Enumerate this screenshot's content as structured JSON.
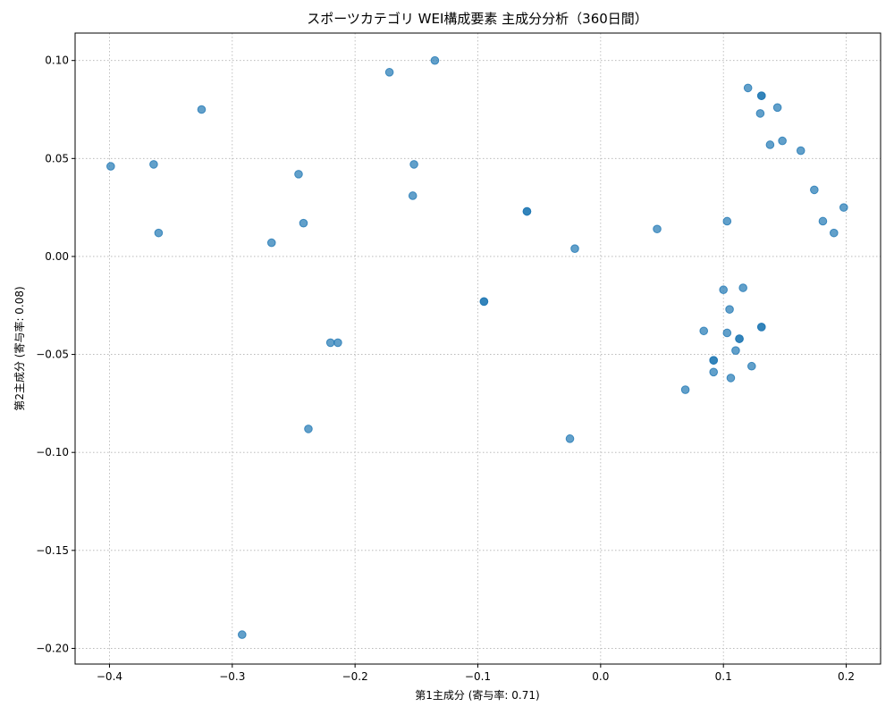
{
  "chart_data": {
    "type": "scatter",
    "title": "スポーツカテゴリ WEI構成要素 主成分分析（360日間）",
    "xlabel": "第1主成分 (寄与率: 0.71)",
    "ylabel": "第2主成分 (寄与率: 0.08)",
    "xlim": [
      -0.428,
      0.228
    ],
    "ylim": [
      -0.208,
      0.114
    ],
    "xticks": [
      -0.4,
      -0.3,
      -0.2,
      -0.1,
      0.0,
      0.1,
      0.2
    ],
    "xtick_labels": [
      "−0.4",
      "−0.3",
      "−0.2",
      "−0.1",
      "0.0",
      "0.1",
      "0.2"
    ],
    "yticks": [
      -0.2,
      -0.15,
      -0.1,
      -0.05,
      0.0,
      0.05,
      0.1
    ],
    "ytick_labels": [
      "−0.20",
      "−0.15",
      "−0.10",
      "−0.05",
      "0.00",
      "0.05",
      "0.10"
    ],
    "grid": true,
    "color": "#1f77b4",
    "points": [
      [
        -0.399,
        0.046
      ],
      [
        -0.364,
        0.047
      ],
      [
        -0.36,
        0.012
      ],
      [
        -0.325,
        0.075
      ],
      [
        -0.292,
        -0.193
      ],
      [
        -0.268,
        0.007
      ],
      [
        -0.246,
        0.042
      ],
      [
        -0.242,
        0.017
      ],
      [
        -0.238,
        -0.088
      ],
      [
        -0.22,
        -0.044
      ],
      [
        -0.214,
        -0.044
      ],
      [
        -0.172,
        0.094
      ],
      [
        -0.135,
        0.1
      ],
      [
        -0.152,
        0.047
      ],
      [
        -0.153,
        0.031
      ],
      [
        -0.095,
        -0.023
      ],
      [
        -0.095,
        -0.023
      ],
      [
        -0.06,
        0.023
      ],
      [
        -0.06,
        0.023
      ],
      [
        -0.021,
        0.004
      ],
      [
        -0.025,
        -0.093
      ],
      [
        0.046,
        0.014
      ],
      [
        0.069,
        -0.068
      ],
      [
        0.084,
        -0.038
      ],
      [
        0.092,
        -0.053
      ],
      [
        0.092,
        -0.053
      ],
      [
        0.092,
        -0.059
      ],
      [
        0.1,
        -0.017
      ],
      [
        0.103,
        0.018
      ],
      [
        0.103,
        -0.039
      ],
      [
        0.105,
        -0.027
      ],
      [
        0.106,
        -0.062
      ],
      [
        0.11,
        -0.048
      ],
      [
        0.113,
        -0.042
      ],
      [
        0.113,
        -0.042
      ],
      [
        0.116,
        -0.016
      ],
      [
        0.12,
        0.086
      ],
      [
        0.123,
        -0.056
      ],
      [
        0.13,
        0.073
      ],
      [
        0.131,
        0.082
      ],
      [
        0.131,
        0.082
      ],
      [
        0.131,
        -0.036
      ],
      [
        0.131,
        -0.036
      ],
      [
        0.138,
        0.057
      ],
      [
        0.144,
        0.076
      ],
      [
        0.148,
        0.059
      ],
      [
        0.163,
        0.054
      ],
      [
        0.174,
        0.034
      ],
      [
        0.181,
        0.018
      ],
      [
        0.19,
        0.012
      ],
      [
        0.198,
        0.025
      ]
    ]
  }
}
